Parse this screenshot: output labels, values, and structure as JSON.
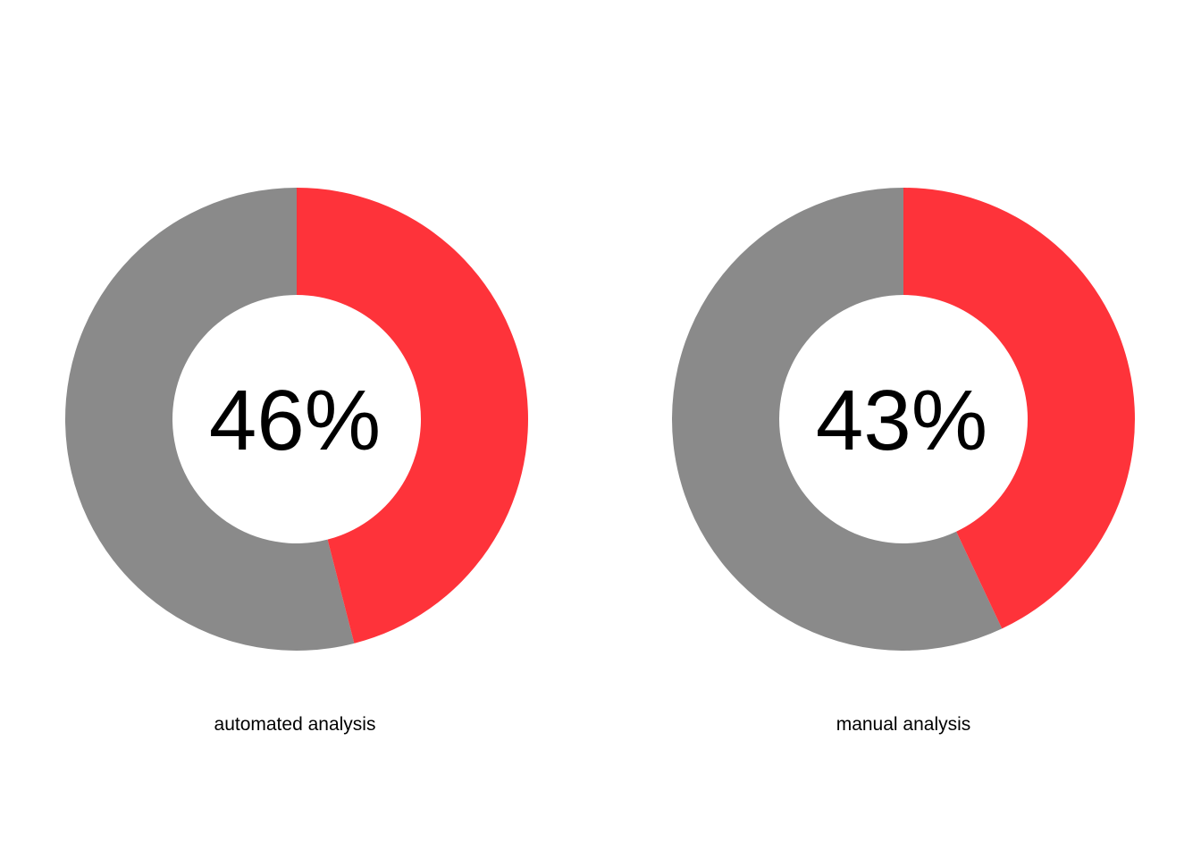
{
  "chart_data": [
    {
      "type": "pie",
      "style": "donut",
      "category": "automated analysis",
      "value_percent": 46,
      "label": "46%",
      "colors": {
        "value": "#fe333a",
        "remainder": "#8a8a8a"
      }
    },
    {
      "type": "pie",
      "style": "donut",
      "category": "manual analysis",
      "value_percent": 43,
      "label": "43%",
      "colors": {
        "value": "#fe333a",
        "remainder": "#8a8a8a"
      }
    }
  ]
}
